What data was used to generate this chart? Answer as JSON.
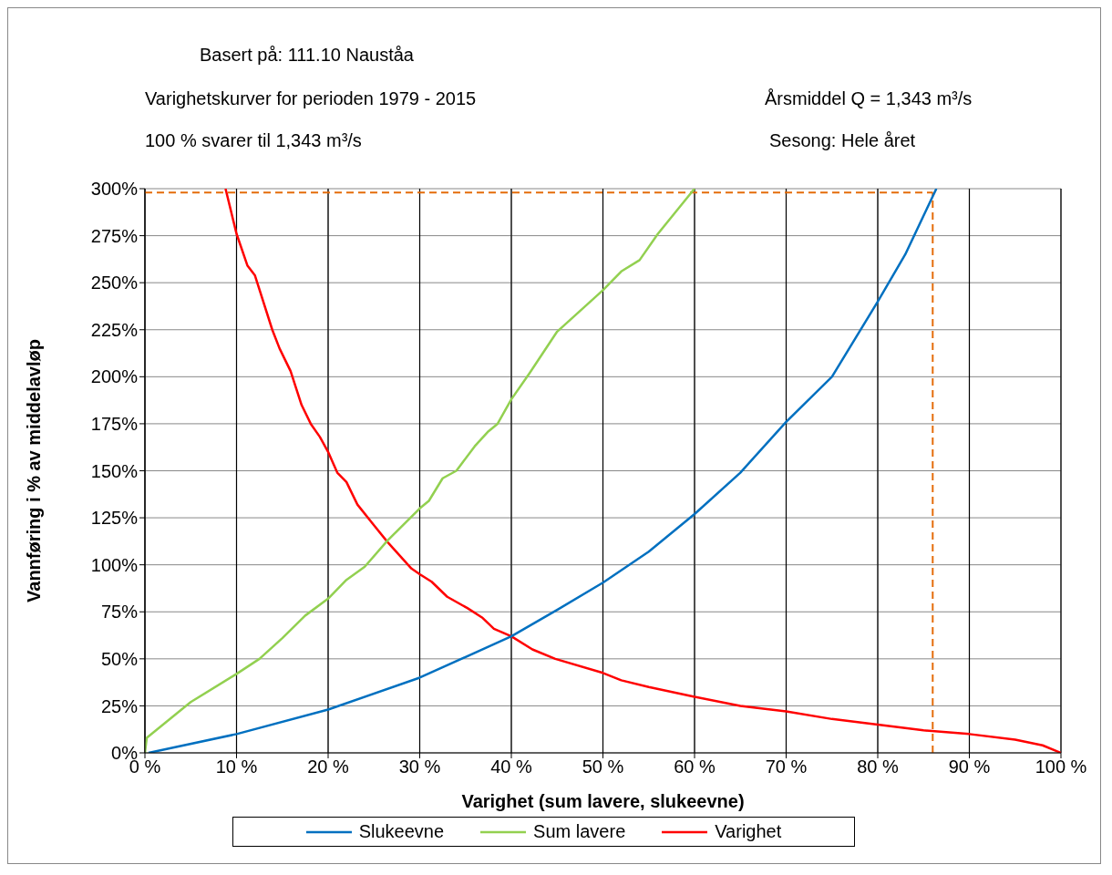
{
  "chart_data": {
    "type": "line",
    "title": "Basert på: 111.10  Nauståa",
    "subtitle": "Varighetskurver for perioden 1979 - 2015",
    "annotations": [
      "100 % svarer til 1,343 m³/s",
      "Årsmiddel Q = 1,343 m³/s",
      "Sesong: Hele året"
    ],
    "xlabel": "Varighet (sum lavere, slukeevne)",
    "ylabel": "Vannføring i % av middelavløp",
    "series": [
      {
        "name": "Varighet",
        "color": "#ff0000",
        "x": [
          8.8,
          10,
          11.2,
          12,
          13.9,
          14.7,
          15.9,
          17.1,
          18.1,
          19.1,
          20,
          21,
          22,
          23.2,
          25,
          26.5,
          29.1,
          30,
          31.3,
          33,
          35.2,
          36.8,
          38.1,
          40,
          42.3,
          44.8,
          50,
          52,
          55,
          60,
          65,
          70,
          75,
          80,
          85,
          90,
          95,
          98,
          100
        ],
        "values": [
          300,
          276,
          259,
          254,
          225,
          215,
          203,
          185,
          175,
          168,
          160,
          149,
          144,
          132,
          121,
          112,
          98,
          95,
          91,
          83,
          77,
          72,
          66,
          62,
          55,
          50,
          42.5,
          38.6,
          35,
          29.8,
          25,
          22,
          18,
          15,
          12,
          10,
          7,
          4,
          0
        ]
      },
      {
        "name": "Sum lavere",
        "color": "#92d050",
        "x": [
          0,
          0.2,
          5,
          10,
          12.5,
          15,
          17.5,
          20,
          22,
          24,
          26.5,
          30,
          31,
          32.5,
          34,
          36,
          37.5,
          38.5,
          40,
          42,
          45,
          50,
          52,
          54,
          56,
          58,
          60
        ],
        "values": [
          0,
          8,
          27,
          42,
          50,
          61,
          73,
          82,
          92,
          99,
          113,
          130,
          134,
          146,
          150,
          163,
          171,
          175,
          188,
          202,
          224,
          246,
          256,
          262,
          276,
          288,
          300
        ]
      },
      {
        "name": "Slukeevne",
        "color": "#0070c0",
        "x": [
          0.4,
          10,
          20,
          30,
          40,
          45,
          50,
          55,
          60,
          65,
          70,
          75,
          80,
          83,
          86.4
        ],
        "values": [
          0,
          10,
          23,
          40,
          62,
          76,
          90.5,
          107,
          127,
          149,
          176,
          200,
          240,
          265,
          300
        ]
      }
    ],
    "xlim": [
      0,
      100
    ],
    "xticks": [
      {
        "value": 0,
        "label": "0 %"
      },
      {
        "value": 10,
        "label": "10 %"
      },
      {
        "value": 20,
        "label": "20 %"
      },
      {
        "value": 30,
        "label": "30 %"
      },
      {
        "value": 40,
        "label": "40 %"
      },
      {
        "value": 50,
        "label": "50 %"
      },
      {
        "value": 60,
        "label": "60 %"
      },
      {
        "value": 70,
        "label": "70 %"
      },
      {
        "value": 80,
        "label": "80 %"
      },
      {
        "value": 90,
        "label": "90 %"
      },
      {
        "value": 100,
        "label": "100 %"
      }
    ],
    "ylim": [
      0,
      300
    ],
    "yticks": [
      {
        "value": 0,
        "label": "0%"
      },
      {
        "value": 25,
        "label": "25%"
      },
      {
        "value": 50,
        "label": "50%"
      },
      {
        "value": 75,
        "label": "75%"
      },
      {
        "value": 100,
        "label": "100%"
      },
      {
        "value": 125,
        "label": "125%"
      },
      {
        "value": 150,
        "label": "150%"
      },
      {
        "value": 175,
        "label": "175%"
      },
      {
        "value": 200,
        "label": "200%"
      },
      {
        "value": 225,
        "label": "225%"
      },
      {
        "value": 250,
        "label": "250%"
      },
      {
        "value": 275,
        "label": "275%"
      },
      {
        "value": 300,
        "label": "300%"
      }
    ],
    "ref_lines": [
      {
        "axis": "y",
        "value": 298,
        "color": "#e46c0a",
        "line_style": "dashed"
      },
      {
        "axis": "x",
        "value": 86,
        "color": "#e46c0a",
        "line_style": "dashed"
      }
    ],
    "grid": true,
    "legend": "bottom",
    "marker": "none",
    "line_style": "solid"
  }
}
